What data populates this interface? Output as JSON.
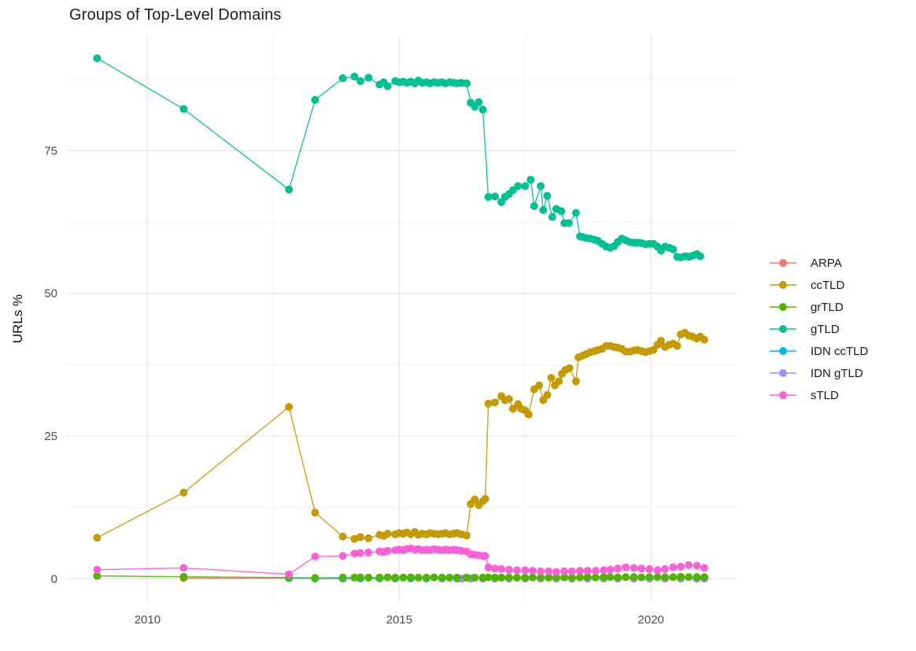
{
  "chart_data": {
    "type": "line",
    "title": "Groups of Top-Level Domains",
    "xlabel": "",
    "ylabel": "URLs %",
    "xlim": [
      2008.4,
      2021.7
    ],
    "ylim": [
      -4.1,
      95.2
    ],
    "x_ticks": [
      2010,
      2015,
      2020
    ],
    "x_tick_labels": [
      "2010",
      "2015",
      "2020"
    ],
    "x_minor": [
      2012.5,
      2017.5
    ],
    "y_ticks": [
      0,
      25,
      50,
      75
    ],
    "y_tick_labels": [
      "0",
      "25",
      "50",
      "75"
    ],
    "y_minor": [
      12.5,
      37.5,
      62.5,
      87.5
    ],
    "grid": true,
    "legend_position": "right",
    "colors": {
      "background": "#ffffff",
      "grid_major": "#e6e6e6",
      "grid_minor": "#f0f0f0",
      "tick_label": "#4d4d4d",
      "title": "#1c1c1c",
      "legend_label": "#1a1a1a"
    },
    "draw_order": [
      "ARPA",
      "IDN ccTLD",
      "IDN gTLD",
      "grTLD",
      "sTLD",
      "ccTLD",
      "gTLD"
    ],
    "series": [
      {
        "name": "ARPA",
        "color": "#F8766D",
        "x": [
          2010.72,
          2012.81
        ],
        "y": [
          0.1,
          0.1
        ]
      },
      {
        "name": "ccTLD",
        "color": "#C49A00",
        "x": [
          2009.0,
          2010.72,
          2012.81,
          2013.33,
          2013.88,
          2014.11,
          2014.23,
          2014.39,
          2014.61,
          2014.69,
          2014.77,
          2014.92,
          2015.0,
          2015.08,
          2015.15,
          2015.23,
          2015.31,
          2015.38,
          2015.46,
          2015.54,
          2015.61,
          2015.69,
          2015.77,
          2015.85,
          2015.92,
          2016.0,
          2016.08,
          2016.15,
          2016.23,
          2016.34,
          2016.42,
          2016.5,
          2016.58,
          2016.66,
          2016.71,
          2016.77,
          2016.9,
          2017.03,
          2017.1,
          2017.18,
          2017.26,
          2017.36,
          2017.42,
          2017.5,
          2017.57,
          2017.68,
          2017.78,
          2017.86,
          2017.94,
          2018.02,
          2018.09,
          2018.17,
          2018.23,
          2018.3,
          2018.38,
          2018.51,
          2018.56,
          2018.64,
          2018.72,
          2018.8,
          2018.88,
          2018.95,
          2019.03,
          2019.11,
          2019.19,
          2019.27,
          2019.34,
          2019.42,
          2019.5,
          2019.58,
          2019.66,
          2019.73,
          2019.81,
          2019.89,
          2019.97,
          2020.05,
          2020.13,
          2020.2,
          2020.28,
          2020.36,
          2020.44,
          2020.52,
          2020.59,
          2020.67,
          2020.75,
          2020.83,
          2020.91,
          2020.98,
          2021.06
        ],
        "y": [
          7.2,
          15.1,
          30.1,
          11.6,
          7.4,
          7.0,
          7.3,
          7.1,
          7.7,
          7.5,
          7.9,
          7.8,
          8.0,
          7.9,
          8.1,
          7.8,
          8.2,
          7.7,
          7.9,
          7.8,
          8.0,
          7.9,
          7.8,
          7.9,
          8.0,
          7.8,
          7.9,
          8.0,
          7.8,
          7.6,
          13.1,
          13.9,
          12.9,
          13.6,
          14.0,
          30.7,
          30.9,
          32.0,
          31.3,
          31.5,
          29.8,
          30.6,
          29.8,
          29.5,
          28.8,
          33.2,
          33.9,
          31.3,
          32.2,
          35.2,
          33.9,
          34.6,
          35.9,
          36.6,
          36.9,
          34.6,
          38.8,
          39.1,
          39.4,
          39.7,
          39.9,
          40.1,
          40.3,
          40.8,
          40.8,
          40.6,
          40.5,
          40.3,
          39.8,
          39.8,
          40.0,
          40.1,
          39.9,
          39.7,
          39.9,
          40.1,
          41.0,
          41.7,
          40.6,
          41.0,
          41.2,
          40.8,
          42.8,
          43.1,
          42.6,
          42.4,
          42.1,
          42.4,
          41.9
        ]
      },
      {
        "name": "grTLD",
        "color": "#53B400",
        "x": [
          2009.0,
          2010.72,
          2012.81,
          2013.33,
          2013.88,
          2014.11,
          2014.23,
          2014.39,
          2014.61,
          2014.77,
          2014.92,
          2015.08,
          2015.23,
          2015.38,
          2015.54,
          2015.69,
          2015.85,
          2016.0,
          2016.15,
          2016.34,
          2016.5,
          2016.66,
          2016.77,
          2016.9,
          2017.03,
          2017.18,
          2017.34,
          2017.5,
          2017.65,
          2017.81,
          2017.97,
          2018.12,
          2018.28,
          2018.43,
          2018.59,
          2018.74,
          2018.9,
          2019.06,
          2019.19,
          2019.34,
          2019.5,
          2019.66,
          2019.81,
          2019.97,
          2020.13,
          2020.28,
          2020.44,
          2020.59,
          2020.75,
          2020.91,
          2021.06
        ],
        "y": [
          0.5,
          0.35,
          0.2,
          0.15,
          0.2,
          0.2,
          0.25,
          0.2,
          0.2,
          0.25,
          0.2,
          0.2,
          0.25,
          0.2,
          0.2,
          0.25,
          0.2,
          0.2,
          0.2,
          0.2,
          0.2,
          0.2,
          0.25,
          0.2,
          0.2,
          0.25,
          0.2,
          0.2,
          0.25,
          0.2,
          0.2,
          0.25,
          0.25,
          0.2,
          0.25,
          0.3,
          0.25,
          0.3,
          0.3,
          0.25,
          0.3,
          0.3,
          0.25,
          0.3,
          0.3,
          0.3,
          0.3,
          0.35,
          0.3,
          0.3,
          0.3
        ]
      },
      {
        "name": "gTLD",
        "color": "#00C094",
        "x": [
          2009.0,
          2010.72,
          2012.81,
          2013.33,
          2013.88,
          2014.11,
          2014.23,
          2014.39,
          2014.61,
          2014.69,
          2014.77,
          2014.92,
          2015.0,
          2015.08,
          2015.15,
          2015.23,
          2015.31,
          2015.38,
          2015.46,
          2015.54,
          2015.61,
          2015.69,
          2015.77,
          2015.85,
          2015.92,
          2016.0,
          2016.08,
          2016.15,
          2016.23,
          2016.34,
          2016.42,
          2016.5,
          2016.58,
          2016.66,
          2016.77,
          2016.9,
          2017.03,
          2017.1,
          2017.18,
          2017.26,
          2017.36,
          2017.5,
          2017.61,
          2017.68,
          2017.81,
          2017.86,
          2017.94,
          2018.04,
          2018.12,
          2018.22,
          2018.28,
          2018.37,
          2018.51,
          2018.59,
          2018.64,
          2018.72,
          2018.8,
          2018.88,
          2018.95,
          2019.03,
          2019.11,
          2019.19,
          2019.27,
          2019.34,
          2019.42,
          2019.5,
          2019.58,
          2019.66,
          2019.73,
          2019.81,
          2019.89,
          2019.97,
          2020.05,
          2020.13,
          2020.2,
          2020.28,
          2020.36,
          2020.44,
          2020.52,
          2020.59,
          2020.67,
          2020.75,
          2020.83,
          2020.91,
          2020.98
        ],
        "y": [
          91.2,
          82.3,
          68.2,
          83.9,
          87.7,
          88.0,
          87.2,
          87.8,
          86.6,
          87.0,
          86.3,
          87.2,
          87.0,
          87.1,
          86.9,
          87.1,
          86.8,
          87.3,
          86.9,
          87.0,
          86.8,
          87.0,
          86.9,
          87.0,
          86.8,
          87.0,
          86.9,
          86.8,
          86.9,
          86.8,
          83.4,
          82.7,
          83.5,
          82.2,
          66.9,
          67.0,
          66.0,
          66.9,
          67.4,
          68.1,
          68.8,
          68.8,
          69.9,
          65.3,
          68.8,
          64.6,
          67.1,
          63.4,
          64.8,
          64.4,
          62.3,
          62.3,
          64.1,
          60.0,
          59.9,
          59.7,
          59.6,
          59.4,
          59.2,
          58.7,
          58.2,
          58.0,
          58.3,
          59.0,
          59.6,
          59.3,
          59.0,
          58.9,
          58.9,
          58.8,
          58.6,
          58.7,
          58.7,
          58.2,
          57.5,
          58.2,
          58.0,
          57.7,
          56.4,
          56.3,
          56.5,
          56.4,
          56.6,
          56.9,
          56.5
        ]
      },
      {
        "name": "IDN ccTLD",
        "color": "#00B6EB",
        "x": [
          2012.81,
          2013.33,
          2013.88,
          2014.23,
          2014.61,
          2014.92,
          2015.23,
          2015.54,
          2015.85,
          2016.15,
          2016.42,
          2016.66,
          2016.9,
          2017.18,
          2017.5,
          2017.81,
          2018.12,
          2018.43,
          2018.74,
          2019.06,
          2019.34,
          2019.66,
          2019.97,
          2020.28,
          2020.59,
          2020.91,
          2021.06
        ],
        "y": [
          0.1,
          0.05,
          0.05,
          0.05,
          0.05,
          0.05,
          0.05,
          0.05,
          0.05,
          0.05,
          0.05,
          0.05,
          0.05,
          0.05,
          0.05,
          0.05,
          0.05,
          0.05,
          0.05,
          0.05,
          0.05,
          0.05,
          0.05,
          0.05,
          0.05,
          0.05,
          0.05
        ]
      },
      {
        "name": "IDN gTLD",
        "color": "#A58AFF",
        "x": [
          2016.25,
          2016.42,
          2016.66,
          2016.9,
          2017.18,
          2017.5,
          2017.81,
          2018.12,
          2018.43,
          2018.74,
          2019.06,
          2019.34,
          2019.66,
          2019.97,
          2020.28,
          2020.59,
          2020.91,
          2021.06
        ],
        "y": [
          0.03,
          0.03,
          0.03,
          0.03,
          0.03,
          0.03,
          0.03,
          0.03,
          0.03,
          0.03,
          0.03,
          0.03,
          0.03,
          0.03,
          0.03,
          0.03,
          0.03,
          0.03
        ]
      },
      {
        "name": "sTLD",
        "color": "#FB61D7",
        "x": [
          2009.0,
          2010.72,
          2012.81,
          2013.33,
          2013.88,
          2014.11,
          2014.23,
          2014.39,
          2014.61,
          2014.69,
          2014.77,
          2014.92,
          2015.0,
          2015.08,
          2015.15,
          2015.23,
          2015.31,
          2015.38,
          2015.46,
          2015.54,
          2015.61,
          2015.69,
          2015.77,
          2015.85,
          2015.92,
          2016.0,
          2016.08,
          2016.15,
          2016.23,
          2016.34,
          2016.42,
          2016.5,
          2016.58,
          2016.66,
          2016.71,
          2016.77,
          2016.9,
          2017.03,
          2017.18,
          2017.34,
          2017.5,
          2017.65,
          2017.81,
          2017.97,
          2018.12,
          2018.28,
          2018.43,
          2018.59,
          2018.74,
          2018.9,
          2019.06,
          2019.19,
          2019.34,
          2019.5,
          2019.66,
          2019.81,
          2019.97,
          2020.13,
          2020.28,
          2020.44,
          2020.59,
          2020.75,
          2020.91,
          2021.06
        ],
        "y": [
          1.6,
          1.9,
          0.8,
          3.9,
          4.0,
          4.4,
          4.5,
          4.6,
          4.8,
          4.7,
          4.9,
          5.0,
          5.1,
          5.0,
          5.2,
          5.3,
          5.1,
          5.2,
          5.0,
          5.1,
          5.0,
          5.2,
          5.1,
          5.0,
          5.1,
          5.0,
          5.1,
          5.0,
          4.9,
          4.8,
          4.3,
          4.2,
          4.1,
          4.0,
          4.0,
          2.0,
          1.8,
          1.7,
          1.6,
          1.5,
          1.5,
          1.4,
          1.3,
          1.3,
          1.2,
          1.3,
          1.3,
          1.4,
          1.4,
          1.4,
          1.5,
          1.6,
          1.8,
          2.0,
          1.9,
          1.8,
          1.7,
          1.5,
          1.7,
          2.0,
          2.1,
          2.4,
          2.3,
          1.9
        ]
      }
    ]
  }
}
